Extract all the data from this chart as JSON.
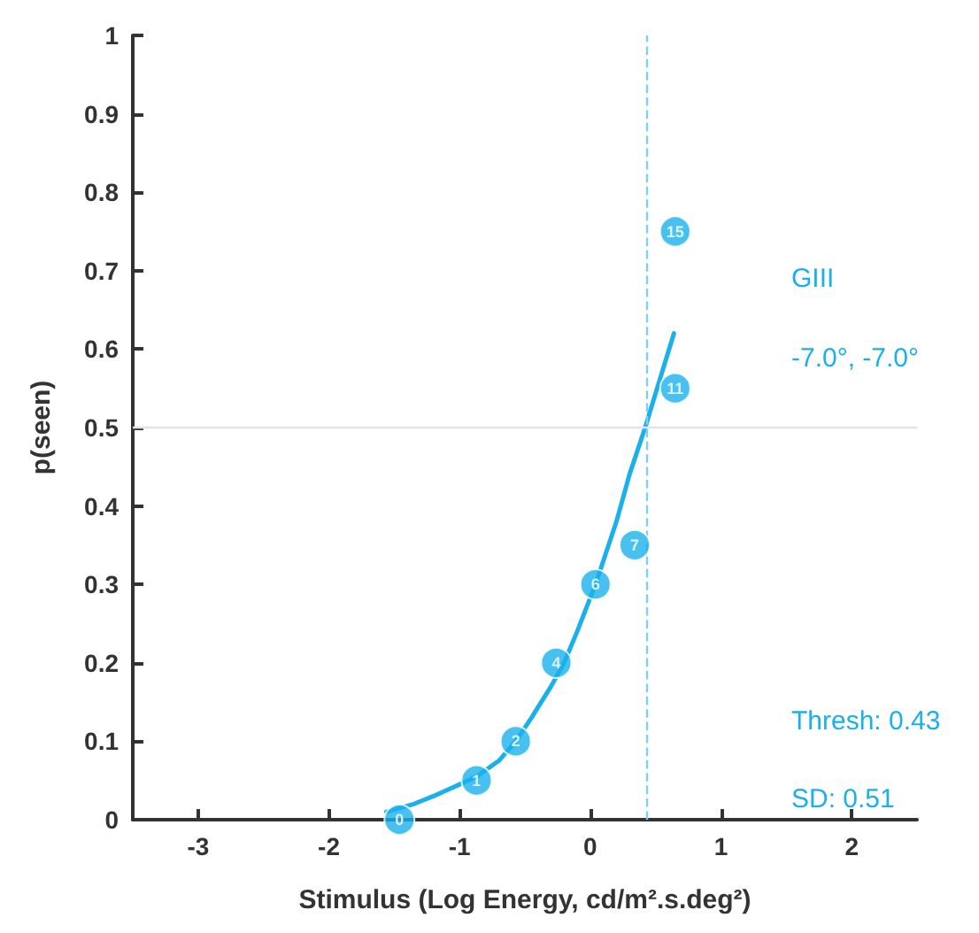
{
  "chart_data": {
    "type": "scatter",
    "xlabel": "Stimulus (Log Energy, cd/m².s.deg²)",
    "ylabel": "p(seen)",
    "xlim": [
      -3.5,
      2.5
    ],
    "xticks": [
      -3,
      -2,
      -1,
      0,
      1,
      2
    ],
    "ylim": [
      0,
      1
    ],
    "yticks": [
      0,
      0.1,
      0.2,
      0.3,
      0.4,
      0.5,
      0.6,
      0.7,
      0.8,
      0.9,
      1
    ],
    "series": [
      {
        "color": "#1ab0ec",
        "marker": "circle",
        "x": [
          -1.46,
          -0.87,
          -0.57,
          -0.26,
          0.04,
          0.34,
          0.65,
          0.65
        ],
        "values": [
          0,
          0.05,
          0.1,
          0.2,
          0.3,
          0.35,
          0.55,
          0.75
        ]
      },
      {
        "type": "line",
        "marker": "none",
        "color": "#1ab0ec",
        "x": [
          -1.56,
          -1.35,
          -1.2,
          -1.0,
          -0.87,
          -0.7,
          -0.57,
          -0.45,
          -0.3,
          -0.2,
          -0.1,
          0.04,
          0.12,
          0.2,
          0.3,
          0.42,
          0.53,
          0.64
        ],
        "values": [
          0.01,
          0.02,
          0.03,
          0.045,
          0.055,
          0.075,
          0.1,
          0.13,
          0.17,
          0.2,
          0.24,
          0.3,
          0.34,
          0.38,
          0.44,
          0.5,
          0.56,
          0.62
        ]
      }
    ],
    "ref_lines": [
      {
        "axis": "y",
        "value": 0.5,
        "color": "#e3e3e3",
        "line_style": "solid"
      },
      {
        "axis": "x",
        "value": 0.43,
        "color": "#7fcff2",
        "line_style": "dashed"
      }
    ],
    "annotations": [
      "GIII",
      "-7.0°, -7.0°",
      "Thresh: 0.43",
      "SD: 0.51",
      {
        "text": "0",
        "x": -1.46,
        "y": 0
      },
      {
        "text": "1",
        "x": -0.87,
        "y": 0.05
      },
      {
        "text": "2",
        "x": -0.57,
        "y": 0.1
      },
      {
        "text": "4",
        "x": -0.26,
        "y": 0.2
      },
      {
        "text": "6",
        "x": 0.04,
        "y": 0.3
      },
      {
        "text": "7",
        "x": 0.34,
        "y": 0.35
      },
      {
        "text": "11",
        "x": 0.65,
        "y": 0.55
      },
      {
        "text": "15",
        "x": 0.65,
        "y": 0.75
      }
    ]
  }
}
